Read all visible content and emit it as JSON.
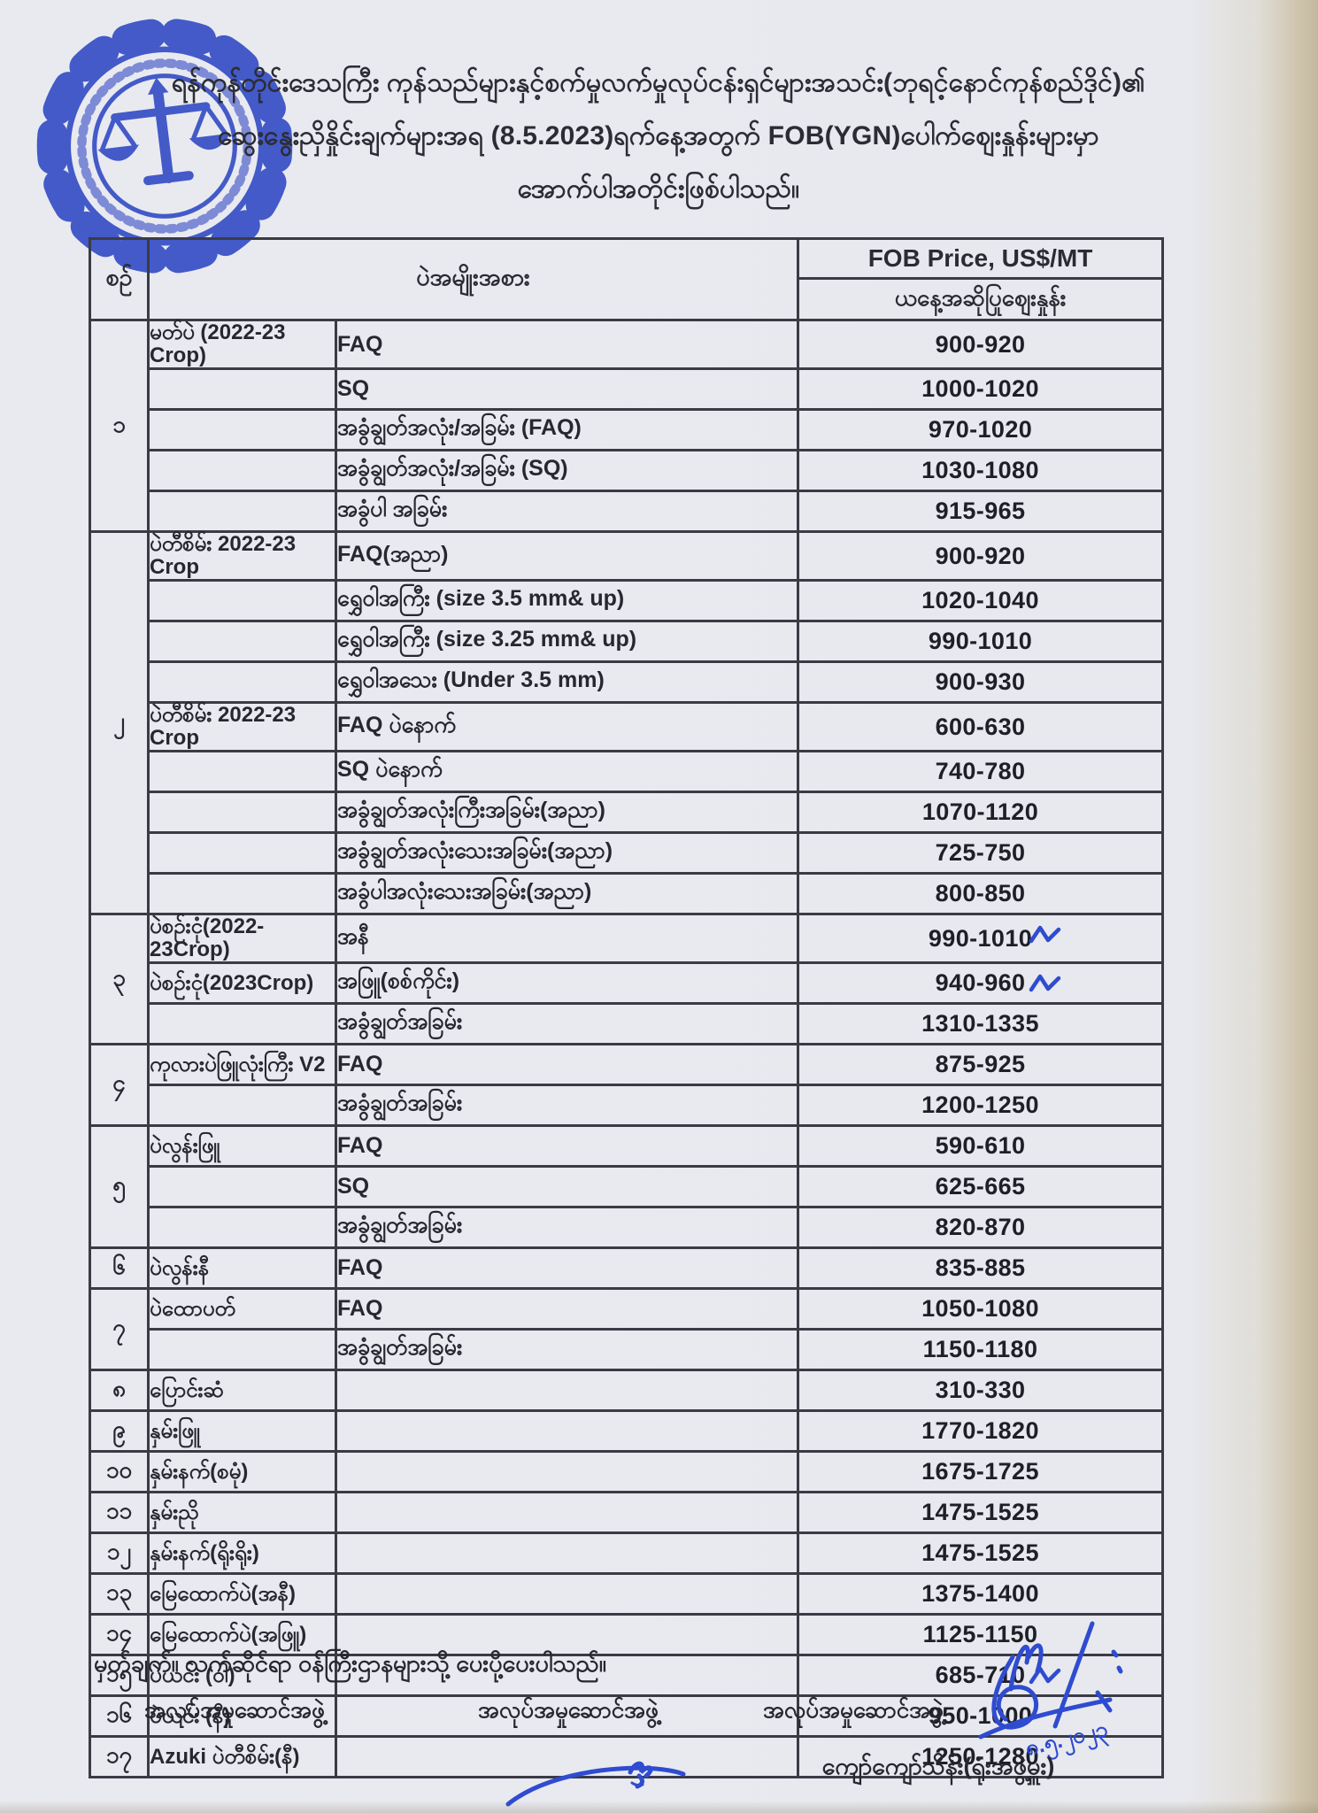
{
  "colors": {
    "ink_blue": "#2f4cd0",
    "paper": "#e9eaf0",
    "table_line": "#3b3b45",
    "text": "#27272f"
  },
  "header": {
    "line1": "ရန်ကုန်တိုင်းဒေသကြီး ကုန်သည်များနှင့်စက်မှုလက်မှုလုပ်ငန်းရှင်များအသင်း(ဘုရင့်နောင်ကုန်စည်ဒိုင်)၏",
    "line2": "ဆွေးနွေးညှိနှိုင်းချက်များအရ (8.5.2023)ရက်နေ့အတွက် FOB(YGN)ပေါက်ဈေးနှုန်းများမှာ",
    "line3": "အောက်ပါအတိုင်းဖြစ်ပါသည်။"
  },
  "table": {
    "headers": {
      "no": "စဉ်",
      "type": "ပဲအမျိုးအစား",
      "price_unit": "FOB Price, US$/MT",
      "price_sub": "ယနေ့အဆိုပြုဈေးနှုန်း"
    },
    "rows": [
      {
        "no": "၁",
        "name": "မတ်ပဲ (2022-23 Crop)",
        "grade": "FAQ",
        "price": "900-920"
      },
      {
        "name": "",
        "grade": "SQ",
        "price": "1000-1020"
      },
      {
        "name": "",
        "grade": "အခွံချွတ်အလုံး/အခြမ်း (FAQ)",
        "price": "970-1020"
      },
      {
        "name": "",
        "grade": "အခွံချွတ်အလုံး/အခြမ်း (SQ)",
        "price": "1030-1080"
      },
      {
        "name": "",
        "grade": "အခွံပါ အခြမ်း",
        "price": "915-965"
      },
      {
        "no": "၂",
        "name": "ပဲတီစိမ်း 2022-23 Crop",
        "grade": "FAQ(အညာ)",
        "price": "900-920"
      },
      {
        "name": "",
        "grade": "ရွှေဝါအကြီး (size 3.5 mm& up)",
        "price": "1020-1040"
      },
      {
        "name": "",
        "grade": "ရွှေဝါအကြီး (size 3.25 mm& up)",
        "price": "990-1010"
      },
      {
        "name": "",
        "grade": "ရွှေဝါအသေး (Under 3.5 mm)",
        "price": "900-930"
      },
      {
        "name": "ပဲတီစိမ်း 2022-23 Crop",
        "grade": "FAQ ပဲနောက်",
        "price": "600-630"
      },
      {
        "name": "",
        "grade": "SQ ပဲနောက်",
        "price": "740-780"
      },
      {
        "name": "",
        "grade": "အခွံချွတ်အလုံးကြီးအခြမ်း(အညာ)",
        "price": "1070-1120"
      },
      {
        "name": "",
        "grade": "အခွံချွတ်အလုံးသေးအခြမ်း(အညာ)",
        "price": "725-750"
      },
      {
        "name": "",
        "grade": "အခွံပါအလုံးသေးအခြမ်း(အညာ)",
        "price": "800-850"
      },
      {
        "no": "၃",
        "name": "ပဲစဉ်းငုံ(2022-23Crop)",
        "grade": "အနီ",
        "price": "990-1010",
        "check": true
      },
      {
        "name": "ပဲစဉ်းငုံ(2023Crop)",
        "grade": "အဖြူ(စစ်ကိုင်း)",
        "price": "940-960",
        "check": true
      },
      {
        "name": "",
        "grade": "အခွံချွတ်အခြမ်း",
        "price": "1310-1335"
      },
      {
        "no": "၄",
        "name": "ကုလားပဲဖြူလုံးကြီး V2",
        "grade": "FAQ",
        "price": "875-925"
      },
      {
        "name": "",
        "grade": "အခွံချွတ်အခြမ်း",
        "price": "1200-1250"
      },
      {
        "no": "၅",
        "name": "ပဲလွန်းဖြူ",
        "grade": "FAQ",
        "price": "590-610"
      },
      {
        "name": "",
        "grade": "SQ",
        "price": "625-665"
      },
      {
        "name": "",
        "grade": "အခွံချွတ်အခြမ်း",
        "price": "820-870"
      },
      {
        "no": "၆",
        "name": "ပဲလွန်းနီ",
        "grade": "FAQ",
        "price": "835-885"
      },
      {
        "no": "၇",
        "name": "ပဲထောပတ်",
        "grade": "FAQ",
        "price": "1050-1080"
      },
      {
        "name": "",
        "grade": "အခွံချွတ်အခြမ်း",
        "price": "1150-1180"
      },
      {
        "no": "၈",
        "name": "ပြောင်းဆံ",
        "grade": "",
        "price": "310-330"
      },
      {
        "no": "၉",
        "name": "နှမ်းဖြူ",
        "grade": "",
        "price": "1770-1820"
      },
      {
        "no": "၁၀",
        "name": "နှမ်းနက်(စမုံ)",
        "grade": "",
        "price": "1675-1725"
      },
      {
        "no": "၁၁",
        "name": "နှမ်းညို",
        "grade": "",
        "price": "1475-1525"
      },
      {
        "no": "၁၂",
        "name": "နှမ်းနက်(ရိုးရိုး)",
        "grade": "",
        "price": "1475-1525"
      },
      {
        "no": "၁၃",
        "name": "မြေထောက်ပဲ(အနီ)",
        "grade": "",
        "price": "1375-1400"
      },
      {
        "no": "၁၄",
        "name": "မြေထောက်ပဲ(အဖြူ)",
        "grade": "",
        "price": "1125-1150"
      },
      {
        "no": "၁၅",
        "name": "ပဲယင်း (ဝါ)",
        "grade": "",
        "price": "685-710",
        "check": true
      },
      {
        "no": "၁၆",
        "name": "ပဲယင်း (နီ)",
        "grade": "",
        "price": "950-1000"
      },
      {
        "no": "၁၇",
        "name": "Azuki ပဲတီစိမ်း(နီ)",
        "grade": "",
        "price": "1250-1280"
      }
    ]
  },
  "footer": {
    "note": "မှတ်ချက်။ သက်ဆိုင်ရာ ဝန်ကြီးဌာနများသို့ ပေးပို့ပေးပါသည်။",
    "committees": [
      "အလုပ်အမှုဆောင်အဖွဲ့",
      "အလုပ်အမှုဆောင်အဖွဲ့",
      "အလုပ်အမှုဆောင်အဖွဲ့"
    ],
    "signer": "ကျော်ကျော်သိန်း(ရုံးအဖွဲ့မှူး)",
    "handwritten_date": "၈.၅.၂၀၂၃"
  }
}
